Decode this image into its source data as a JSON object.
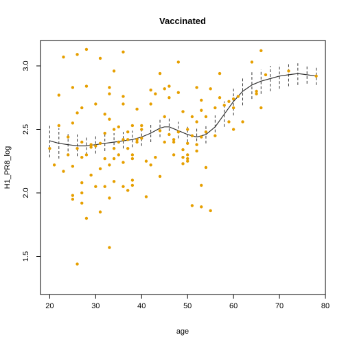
{
  "chart_data": {
    "type": "scatter",
    "title": "Vaccinated",
    "xlabel": "age",
    "ylabel": "H1_PR8_log",
    "xlim": [
      18,
      80
    ],
    "ylim": [
      1.2,
      3.2
    ],
    "x_ticks": [
      20,
      30,
      40,
      50,
      60,
      70,
      80
    ],
    "y_ticks": [
      1.5,
      2.0,
      2.5,
      3.0
    ],
    "y_tick_labels": [
      "1.5",
      "2.0",
      "2.5",
      "3.0"
    ],
    "grid": false,
    "colors": {
      "points": "#E69F00",
      "line": "#333333",
      "band": "#333333"
    },
    "points": [
      [
        20,
        2.35
      ],
      [
        21,
        2.22
      ],
      [
        22,
        2.77
      ],
      [
        22,
        2.53
      ],
      [
        23,
        2.17
      ],
      [
        23,
        3.07
      ],
      [
        24,
        2.44
      ],
      [
        24,
        2.3
      ],
      [
        25,
        2.83
      ],
      [
        25,
        2.55
      ],
      [
        25,
        2.21
      ],
      [
        25,
        1.98
      ],
      [
        25,
        1.95
      ],
      [
        26,
        1.44
      ],
      [
        26,
        2.63
      ],
      [
        26,
        2.35
      ],
      [
        26,
        3.09
      ],
      [
        27,
        2.0
      ],
      [
        27,
        1.92
      ],
      [
        27,
        2.28
      ],
      [
        27,
        2.08
      ],
      [
        27,
        2.4
      ],
      [
        27,
        2.67
      ],
      [
        28,
        3.13
      ],
      [
        28,
        2.84
      ],
      [
        28,
        2.3
      ],
      [
        28,
        1.8
      ],
      [
        29,
        2.38
      ],
      [
        29,
        2.36
      ],
      [
        29,
        2.14
      ],
      [
        30,
        2.05
      ],
      [
        30,
        2.37
      ],
      [
        30,
        2.7
      ],
      [
        31,
        2.19
      ],
      [
        31,
        2.39
      ],
      [
        31,
        1.85
      ],
      [
        31,
        3.06
      ],
      [
        32,
        2.62
      ],
      [
        32,
        2.27
      ],
      [
        32,
        2.05
      ],
      [
        32,
        2.47
      ],
      [
        33,
        2.78
      ],
      [
        33,
        2.83
      ],
      [
        33,
        2.22
      ],
      [
        33,
        1.96
      ],
      [
        33,
        1.57
      ],
      [
        33,
        2.58
      ],
      [
        34,
        2.5
      ],
      [
        34,
        2.27
      ],
      [
        34,
        2.96
      ],
      [
        34,
        2.09
      ],
      [
        34,
        2.35
      ],
      [
        35,
        2.52
      ],
      [
        35,
        2.4
      ],
      [
        35,
        2.3
      ],
      [
        36,
        3.11
      ],
      [
        36,
        2.76
      ],
      [
        36,
        2.7
      ],
      [
        36,
        2.24
      ],
      [
        36,
        2.42
      ],
      [
        36,
        2.05
      ],
      [
        37,
        2.02
      ],
      [
        37,
        2.48
      ],
      [
        37,
        2.42
      ],
      [
        37,
        2.35
      ],
      [
        38,
        2.1
      ],
      [
        38,
        2.06
      ],
      [
        38,
        2.53
      ],
      [
        38,
        2.3
      ],
      [
        38,
        2.27
      ],
      [
        39,
        2.66
      ],
      [
        39,
        2.4
      ],
      [
        39,
        2.42
      ],
      [
        40,
        2.53
      ],
      [
        40,
        2.43
      ],
      [
        40,
        2.5
      ],
      [
        41,
        2.25
      ],
      [
        41,
        1.97
      ],
      [
        42,
        2.81
      ],
      [
        42,
        2.22
      ],
      [
        42,
        2.7
      ],
      [
        43,
        2.28
      ],
      [
        43,
        2.78
      ],
      [
        44,
        2.94
      ],
      [
        44,
        2.49
      ],
      [
        44,
        2.13
      ],
      [
        45,
        2.82
      ],
      [
        45,
        2.6
      ],
      [
        45,
        2.4
      ],
      [
        46,
        2.84
      ],
      [
        46,
        2.75
      ],
      [
        46,
        2.46
      ],
      [
        47,
        2.42
      ],
      [
        47,
        2.4
      ],
      [
        47,
        2.3
      ],
      [
        48,
        2.79
      ],
      [
        48,
        3.03
      ],
      [
        48,
        2.48
      ],
      [
        49,
        2.64
      ],
      [
        49,
        2.34
      ],
      [
        49,
        2.28
      ],
      [
        49,
        2.23
      ],
      [
        50,
        2.27
      ],
      [
        50,
        2.39
      ],
      [
        50,
        2.3
      ],
      [
        50,
        2.25
      ],
      [
        50,
        2.5
      ],
      [
        51,
        2.45
      ],
      [
        51,
        2.6
      ],
      [
        51,
        1.9
      ],
      [
        52,
        2.83
      ],
      [
        52,
        2.56
      ],
      [
        52,
        2.38
      ],
      [
        52,
        2.33
      ],
      [
        53,
        2.65
      ],
      [
        53,
        2.44
      ],
      [
        53,
        2.73
      ],
      [
        53,
        2.06
      ],
      [
        53,
        1.89
      ],
      [
        54,
        2.48
      ],
      [
        54,
        2.2
      ],
      [
        54,
        2.6
      ],
      [
        55,
        1.86
      ],
      [
        55,
        2.82
      ],
      [
        56,
        2.45
      ],
      [
        56,
        2.67
      ],
      [
        57,
        2.94
      ],
      [
        57,
        2.75
      ],
      [
        58,
        2.69
      ],
      [
        59,
        2.56
      ],
      [
        59,
        2.72
      ],
      [
        60,
        2.67
      ],
      [
        60,
        2.5
      ],
      [
        60,
        2.74
      ],
      [
        61,
        2.76
      ],
      [
        62,
        2.56
      ],
      [
        64,
        3.03
      ],
      [
        65,
        2.8
      ],
      [
        65,
        2.78
      ],
      [
        66,
        3.12
      ],
      [
        66,
        2.67
      ],
      [
        67,
        2.93
      ],
      [
        72,
        2.96
      ],
      [
        78,
        2.92
      ]
    ],
    "fitted_curve": [
      [
        20,
        2.41
      ],
      [
        22,
        2.39
      ],
      [
        24,
        2.38
      ],
      [
        26,
        2.37
      ],
      [
        28,
        2.37
      ],
      [
        30,
        2.38
      ],
      [
        32,
        2.39
      ],
      [
        34,
        2.4
      ],
      [
        36,
        2.41
      ],
      [
        38,
        2.42
      ],
      [
        40,
        2.44
      ],
      [
        42,
        2.47
      ],
      [
        44,
        2.51
      ],
      [
        45,
        2.52
      ],
      [
        46,
        2.52
      ],
      [
        48,
        2.49
      ],
      [
        50,
        2.46
      ],
      [
        52,
        2.44
      ],
      [
        54,
        2.46
      ],
      [
        56,
        2.52
      ],
      [
        58,
        2.62
      ],
      [
        60,
        2.72
      ],
      [
        62,
        2.8
      ],
      [
        64,
        2.85
      ],
      [
        66,
        2.88
      ],
      [
        68,
        2.9
      ],
      [
        70,
        2.92
      ],
      [
        72,
        2.93
      ],
      [
        74,
        2.94
      ],
      [
        76,
        2.93
      ],
      [
        78,
        2.92
      ]
    ],
    "confidence_band": [
      [
        20,
        2.28,
        2.54
      ],
      [
        22,
        2.27,
        2.51
      ],
      [
        24,
        2.29,
        2.48
      ],
      [
        26,
        2.29,
        2.46
      ],
      [
        28,
        2.3,
        2.45
      ],
      [
        30,
        2.31,
        2.45
      ],
      [
        32,
        2.33,
        2.46
      ],
      [
        34,
        2.34,
        2.47
      ],
      [
        36,
        2.35,
        2.48
      ],
      [
        38,
        2.36,
        2.49
      ],
      [
        40,
        2.37,
        2.51
      ],
      [
        42,
        2.4,
        2.55
      ],
      [
        44,
        2.44,
        2.59
      ],
      [
        46,
        2.45,
        2.59
      ],
      [
        48,
        2.43,
        2.56
      ],
      [
        50,
        2.4,
        2.52
      ],
      [
        52,
        2.37,
        2.51
      ],
      [
        54,
        2.39,
        2.54
      ],
      [
        56,
        2.44,
        2.61
      ],
      [
        58,
        2.52,
        2.72
      ],
      [
        60,
        2.61,
        2.82
      ],
      [
        62,
        2.69,
        2.91
      ],
      [
        64,
        2.74,
        2.95
      ],
      [
        66,
        2.78,
        2.97
      ],
      [
        68,
        2.8,
        3.0
      ],
      [
        70,
        2.82,
        3.01
      ],
      [
        72,
        2.84,
        3.02
      ],
      [
        74,
        2.85,
        3.02
      ],
      [
        76,
        2.86,
        3.01
      ],
      [
        78,
        2.85,
        3.0
      ]
    ]
  }
}
